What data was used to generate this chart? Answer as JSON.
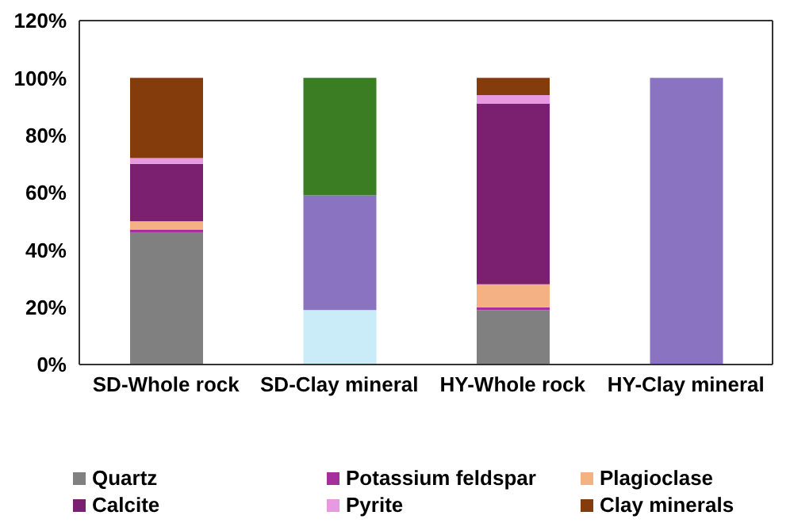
{
  "chart_data": {
    "type": "bar",
    "stacked": true,
    "categories": [
      "SD-Whole rock",
      "SD-Clay mineral",
      "HY-Whole rock",
      "HY-Clay mineral"
    ],
    "series": [
      {
        "name": "Quartz",
        "color": "#808080",
        "values": [
          46,
          null,
          19,
          null
        ]
      },
      {
        "name": "Potassium feldspar",
        "color": "#a5309c",
        "values": [
          1,
          null,
          1,
          null
        ]
      },
      {
        "name": "Plagioclase",
        "color": "#f4b183",
        "values": [
          3,
          null,
          8,
          null
        ]
      },
      {
        "name": "Calcite",
        "color": "#7b2070",
        "values": [
          20,
          null,
          63,
          null
        ]
      },
      {
        "name": "Pyrite",
        "color": "#e89ae0",
        "values": [
          2,
          null,
          3,
          null
        ]
      },
      {
        "name": "Clay minerals",
        "color": "#843c0c",
        "values": [
          28,
          null,
          6,
          null
        ]
      },
      {
        "color": "#c9ecf8",
        "values": [
          null,
          19,
          null,
          null
        ]
      },
      {
        "color": "#8a74c2",
        "values": [
          null,
          40,
          null,
          100
        ]
      },
      {
        "color": "#3b7d23",
        "values": [
          null,
          41,
          null,
          null
        ]
      }
    ],
    "ylim": [
      0,
      120
    ],
    "yticks": [
      {
        "value": 0,
        "label": "0%"
      },
      {
        "value": 20,
        "label": "20%"
      },
      {
        "value": 40,
        "label": "40%"
      },
      {
        "value": 60,
        "label": "60%"
      },
      {
        "value": 80,
        "label": "80%"
      },
      {
        "value": 100,
        "label": "100%"
      },
      {
        "value": 120,
        "label": "120%"
      }
    ],
    "grid": false,
    "legend": "bottom"
  }
}
